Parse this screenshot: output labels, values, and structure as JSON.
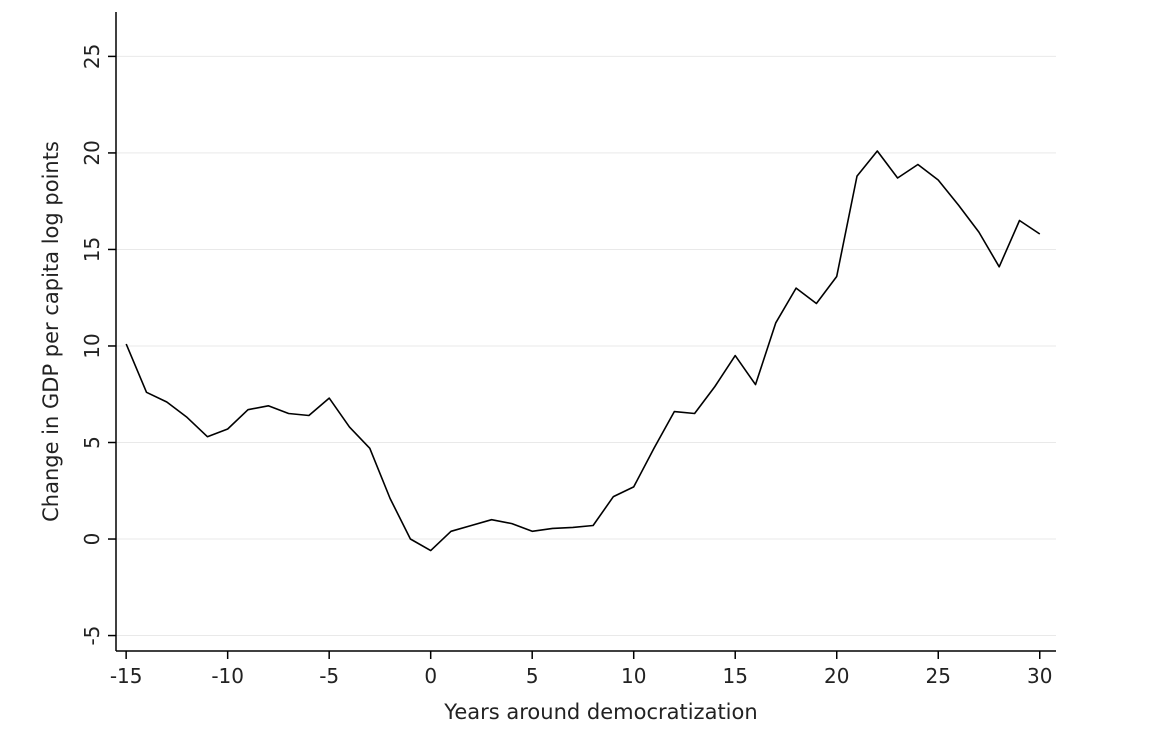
{
  "chart_data": {
    "type": "line",
    "xlabel": "Years around democratization",
    "ylabel": "Change in GDP per capita log points",
    "xlim": [
      -15.5,
      30.8
    ],
    "ylim": [
      -5.8,
      27.3
    ],
    "xticks": [
      -15,
      -10,
      -5,
      0,
      5,
      10,
      15,
      20,
      25,
      30
    ],
    "yticks": [
      -5,
      0,
      5,
      10,
      15,
      20,
      25
    ],
    "grid": "horizontal",
    "legend": "none",
    "series": [
      {
        "color": "#000000",
        "x": [
          -15,
          -14,
          -13,
          -12,
          -11,
          -10,
          -9,
          -8,
          -7,
          -6,
          -5,
          -4,
          -3,
          -2,
          -1,
          0,
          1,
          2,
          3,
          4,
          5,
          6,
          7,
          8,
          9,
          10,
          11,
          12,
          13,
          14,
          15,
          16,
          17,
          18,
          19,
          20,
          21,
          22,
          23,
          24,
          25,
          26,
          27,
          28,
          29,
          30
        ],
        "y": [
          10.1,
          7.6,
          7.1,
          6.3,
          5.3,
          5.7,
          6.7,
          6.9,
          6.5,
          6.4,
          7.3,
          5.8,
          4.7,
          2.1,
          0.0,
          -0.6,
          0.4,
          0.7,
          1.0,
          0.8,
          0.4,
          0.55,
          0.6,
          0.7,
          2.2,
          2.7,
          4.7,
          6.6,
          6.5,
          7.9,
          9.5,
          8.0,
          11.2,
          13.0,
          12.2,
          13.6,
          18.8,
          20.1,
          18.7,
          19.4,
          18.6,
          17.3,
          15.9,
          14.1,
          16.5,
          15.8
        ]
      }
    ]
  }
}
